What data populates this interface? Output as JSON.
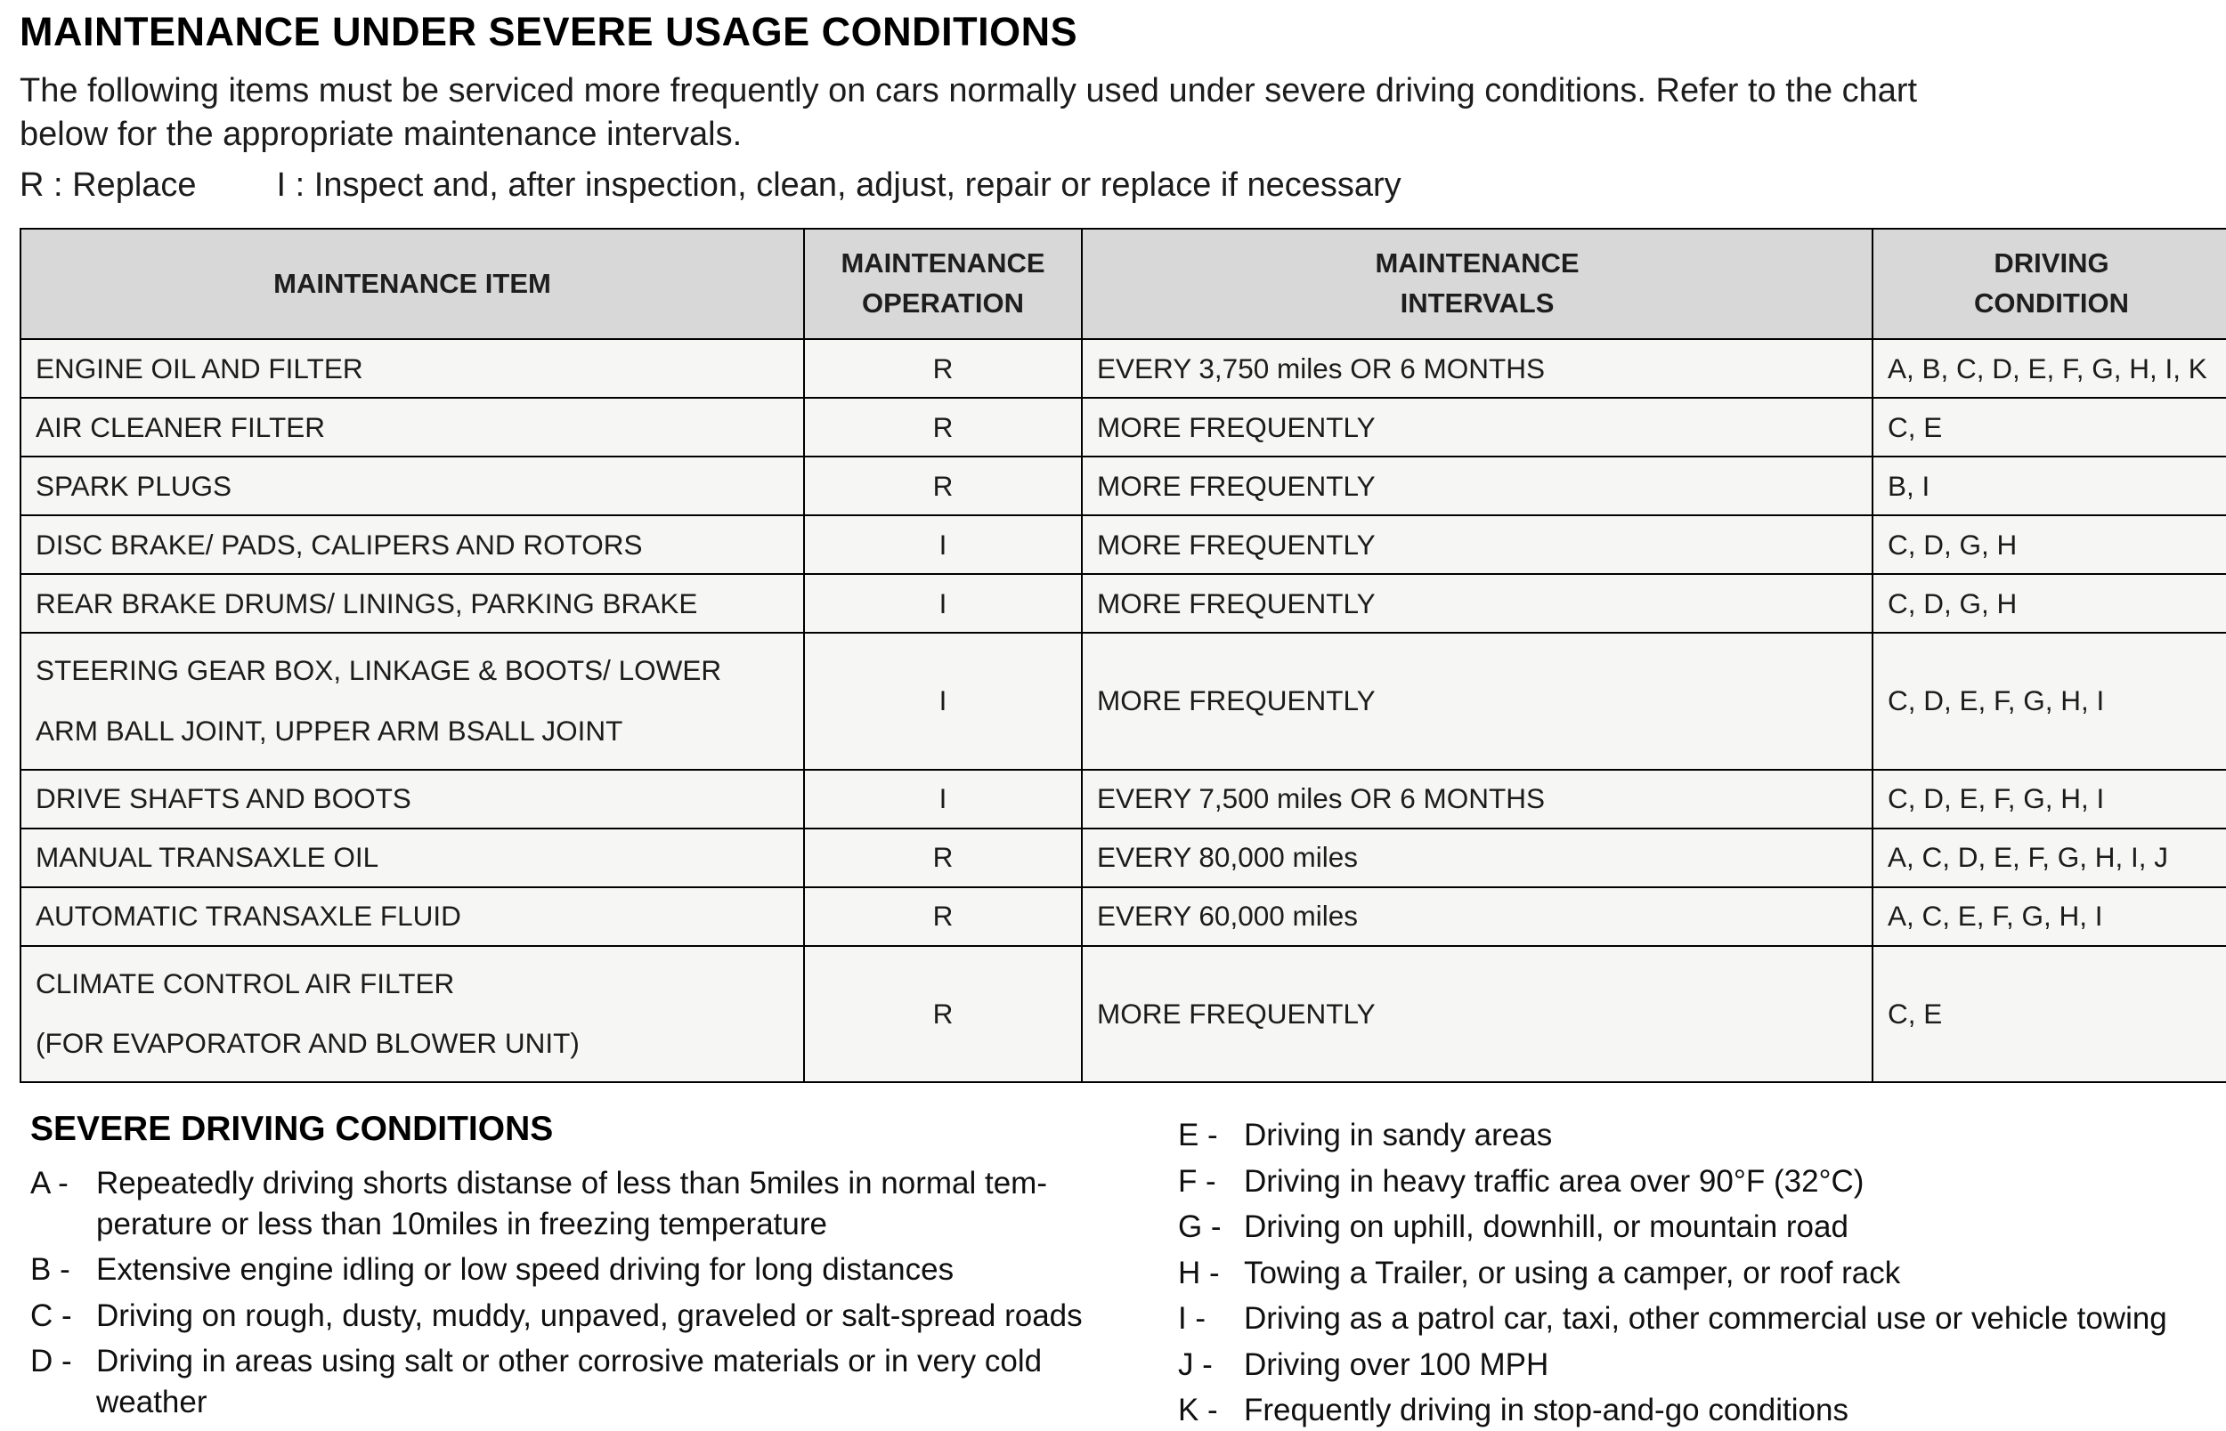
{
  "page": {
    "title": "MAINTENANCE UNDER SEVERE USAGE CONDITIONS",
    "intro": "The following items must be serviced more frequently on cars normally used under severe driving conditions. Refer to the chart\nbelow for the appropriate maintenance intervals.",
    "legend_r": "R : Replace",
    "legend_i": "I : Inspect and, after inspection, clean, adjust, repair or replace if necessary"
  },
  "table": {
    "headers": [
      "MAINTENANCE ITEM",
      "MAINTENANCE\nOPERATION",
      "MAINTENANCE\nINTERVALS",
      "DRIVING\nCONDITION"
    ],
    "rows": [
      {
        "item": "ENGINE OIL AND FILTER",
        "operation": "R",
        "interval": "EVERY 3,750 miles  OR 6 MONTHS",
        "condition": "A, B, C, D, E, F, G, H, I, K"
      },
      {
        "item": "AIR CLEANER FILTER",
        "operation": "R",
        "interval": "MORE FREQUENTLY",
        "condition": "C, E"
      },
      {
        "item": "SPARK PLUGS",
        "operation": "R",
        "interval": "MORE FREQUENTLY",
        "condition": "B, I"
      },
      {
        "item": "DISC BRAKE/ PADS, CALIPERS AND ROTORS",
        "operation": "I",
        "interval": "MORE FREQUENTLY",
        "condition": "C, D, G, H"
      },
      {
        "item": "REAR BRAKE DRUMS/ LININGS, PARKING BRAKE",
        "operation": "I",
        "interval": "MORE FREQUENTLY",
        "condition": "C, D, G, H"
      },
      {
        "item": "STEERING GEAR BOX, LINKAGE & BOOTS/ LOWER\nARM BALL JOINT, UPPER ARM BSALL JOINT",
        "operation": "I",
        "interval": "MORE FREQUENTLY",
        "condition": "C, D, E, F, G, H, I"
      },
      {
        "item": "DRIVE SHAFTS AND BOOTS",
        "operation": "I",
        "interval": "EVERY 7,500 miles OR 6 MONTHS",
        "condition": "C, D, E, F, G, H, I"
      },
      {
        "item": "MANUAL TRANSAXLE OIL",
        "operation": "R",
        "interval": "EVERY 80,000 miles",
        "condition": "A, C, D, E, F, G, H, I, J"
      },
      {
        "item": "AUTOMATIC TRANSAXLE FLUID",
        "operation": "R",
        "interval": "EVERY 60,000 miles",
        "condition": "A, C, E, F, G, H, I"
      },
      {
        "item": "CLIMATE CONTROL AIR FILTER\n(FOR EVAPORATOR AND BLOWER UNIT)",
        "operation": "R",
        "interval": "MORE FREQUENTLY",
        "condition": "C, E"
      }
    ]
  },
  "conditions": {
    "heading": "SEVERE DRIVING CONDITIONS",
    "left": [
      {
        "code": "A -",
        "text": "Repeatedly driving shorts distanse of less than 5miles in normal tem-\nperature or less than 10miles in freezing temperature"
      },
      {
        "code": "B -",
        "text": "Extensive engine idling or low speed driving for long distances"
      },
      {
        "code": "C -",
        "text": "Driving on rough, dusty, muddy, unpaved, graveled or salt-spread roads"
      },
      {
        "code": "D -",
        "text": "Driving in areas using salt or other corrosive materials or in very cold\nweather"
      }
    ],
    "right": [
      {
        "code": "E -",
        "text": "Driving in sandy areas"
      },
      {
        "code": "F -",
        "text": "Driving in heavy traffic area over 90°F (32°C)"
      },
      {
        "code": "G -",
        "text": "Driving on uphill, downhill, or mountain road"
      },
      {
        "code": "H -",
        "text": "Towing a Trailer, or using a camper, or roof rack"
      },
      {
        "code": "I -",
        "text": "Driving as a patrol car, taxi, other commercial use or vehicle towing"
      },
      {
        "code": "J -",
        "text": "Driving over 100 MPH"
      },
      {
        "code": "K -",
        "text": "Frequently driving in stop-and-go conditions"
      }
    ]
  }
}
